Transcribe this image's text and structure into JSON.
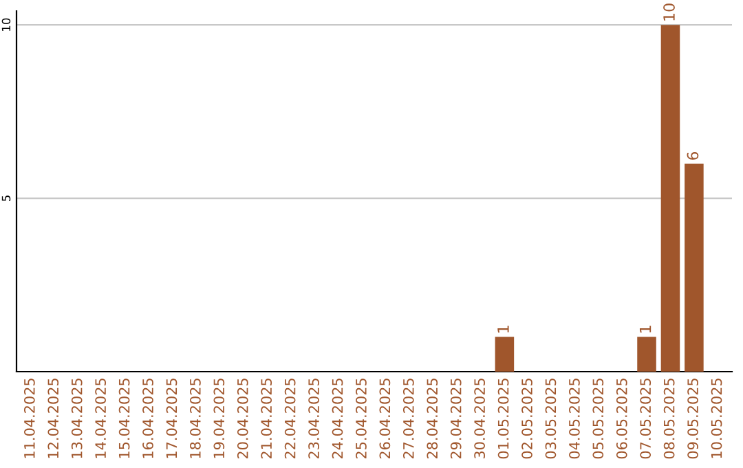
{
  "chart_data": {
    "type": "bar",
    "categories": [
      "11.04.2025",
      "12.04.2025",
      "13.04.2025",
      "14.04.2025",
      "15.04.2025",
      "16.04.2025",
      "17.04.2025",
      "18.04.2025",
      "19.04.2025",
      "20.04.2025",
      "21.04.2025",
      "22.04.2025",
      "23.04.2025",
      "24.04.2025",
      "25.04.2025",
      "26.04.2025",
      "27.04.2025",
      "28.04.2025",
      "29.04.2025",
      "30.04.2025",
      "01.05.2025",
      "02.05.2025",
      "03.05.2025",
      "04.05.2025",
      "05.05.2025",
      "06.05.2025",
      "07.05.2025",
      "08.05.2025",
      "09.05.2025",
      "10.05.2025"
    ],
    "values": [
      0,
      0,
      0,
      0,
      0,
      0,
      0,
      0,
      0,
      0,
      0,
      0,
      0,
      0,
      0,
      0,
      0,
      0,
      0,
      0,
      1,
      0,
      0,
      0,
      0,
      0,
      1,
      10,
      6,
      0
    ],
    "value_labels": [
      null,
      null,
      null,
      null,
      null,
      null,
      null,
      null,
      null,
      null,
      null,
      null,
      null,
      null,
      null,
      null,
      null,
      null,
      null,
      null,
      "1",
      null,
      null,
      null,
      null,
      null,
      "1",
      "10",
      "6",
      null
    ],
    "color": "#a0562c",
    "ylim": [
      0,
      10.4
    ],
    "yticks": [
      5,
      10
    ],
    "grid": "y"
  }
}
